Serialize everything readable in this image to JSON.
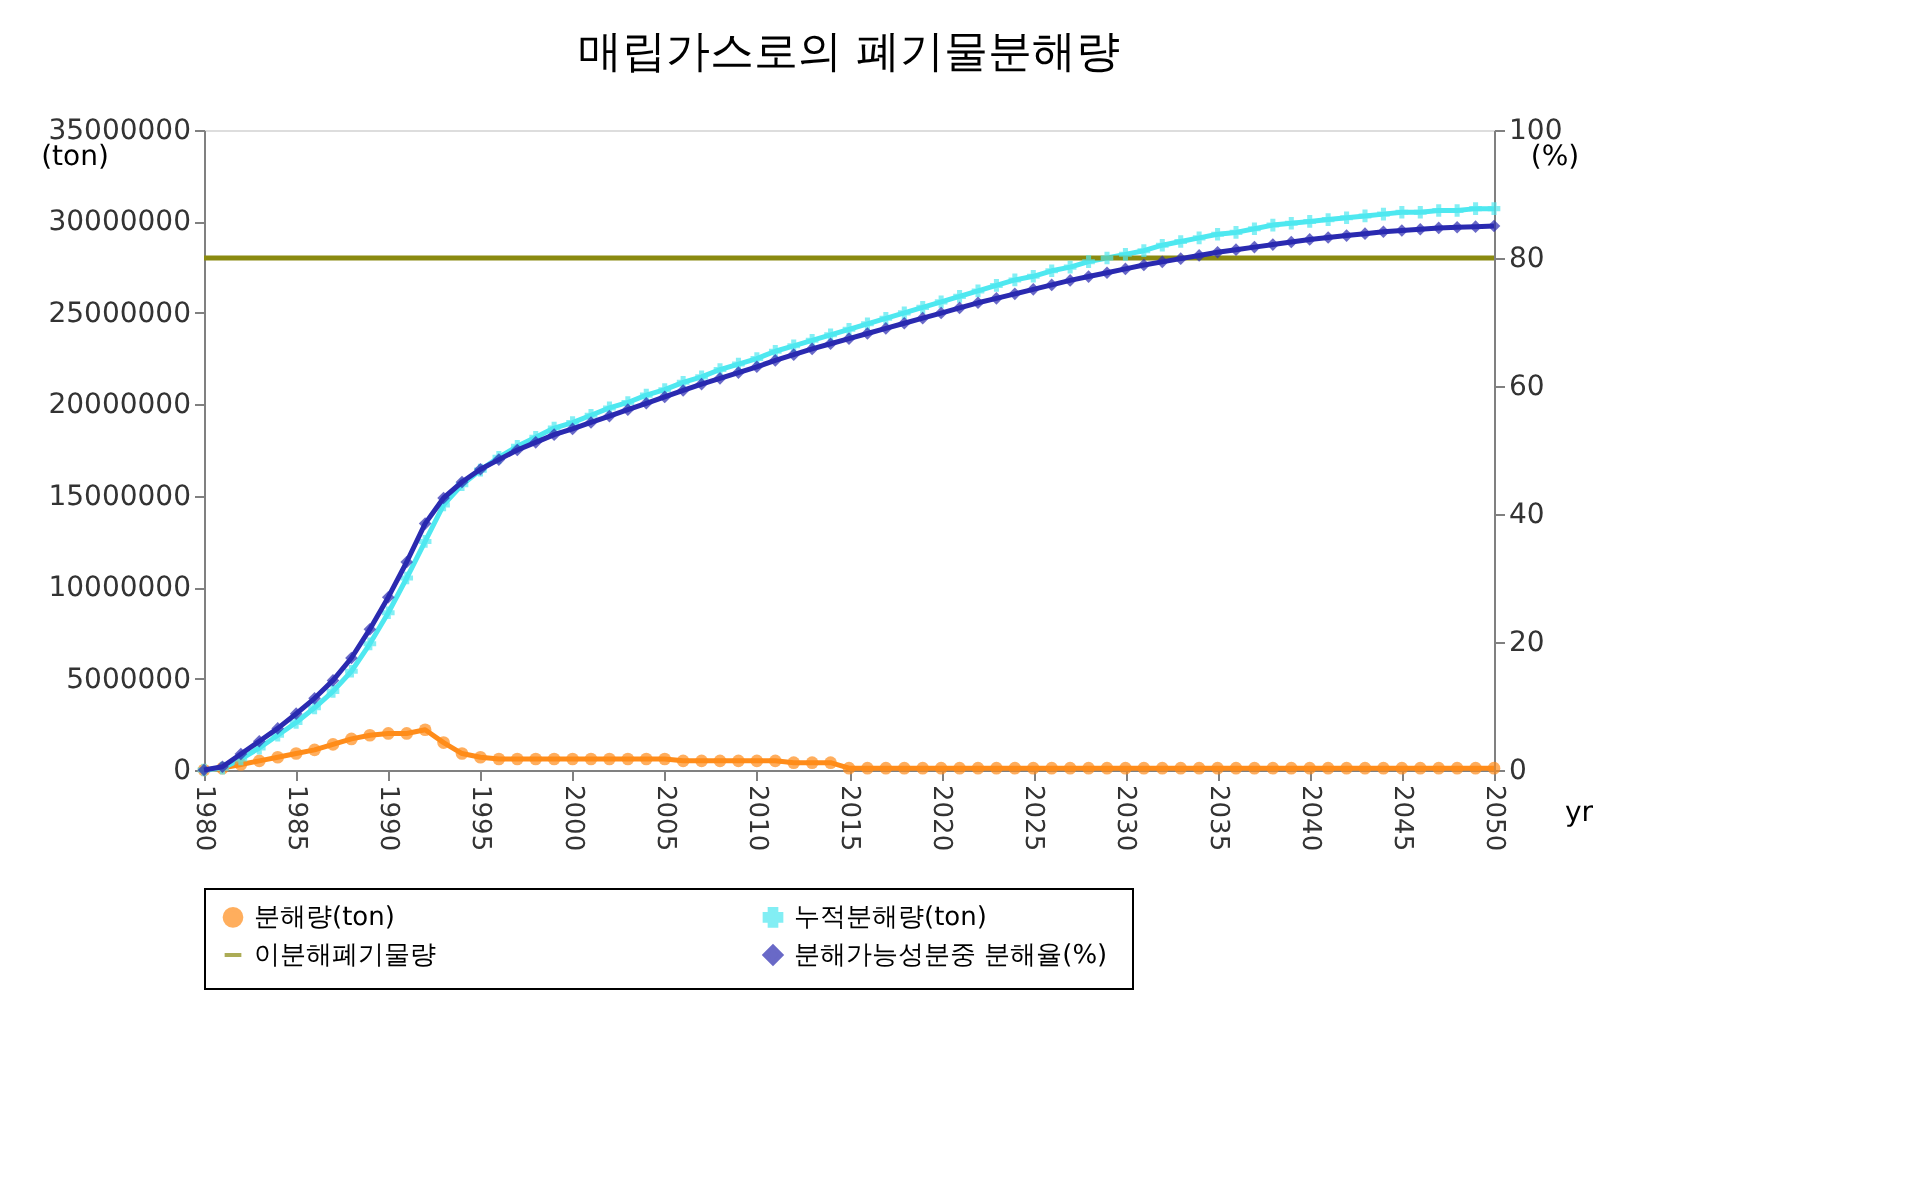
{
  "chart_data": {
    "type": "line",
    "title": "매립가스로의 폐기물분해량",
    "xlabel": "yr",
    "ylabel": "(ton)",
    "y2label": "(%)",
    "x": [
      1980,
      1981,
      1982,
      1983,
      1984,
      1985,
      1986,
      1987,
      1988,
      1989,
      1990,
      1991,
      1992,
      1993,
      1994,
      1995,
      1996,
      1997,
      1998,
      1999,
      2000,
      2001,
      2002,
      2003,
      2004,
      2005,
      2006,
      2007,
      2008,
      2009,
      2010,
      2011,
      2012,
      2013,
      2014,
      2015,
      2016,
      2017,
      2018,
      2019,
      2020,
      2021,
      2022,
      2023,
      2024,
      2025,
      2026,
      2027,
      2028,
      2029,
      2030,
      2031,
      2032,
      2033,
      2034,
      2035,
      2036,
      2037,
      2038,
      2039,
      2040,
      2041,
      2042,
      2043,
      2044,
      2045,
      2046,
      2047,
      2048,
      2049,
      2050
    ],
    "series": [
      {
        "name": "분해량(ton)",
        "color": "#ff8c1a",
        "marker": "circle",
        "values": [
          0,
          100000,
          300000,
          500000,
          700000,
          900000,
          1100000,
          1400000,
          1700000,
          1900000,
          2000000,
          2000000,
          2200000,
          1500000,
          900000,
          700000,
          600000,
          600000,
          600000,
          600000,
          600000,
          600000,
          600000,
          600000,
          600000,
          600000,
          500000,
          500000,
          500000,
          500000,
          500000,
          500000,
          400000,
          400000,
          400000,
          100000,
          100000,
          100000,
          100000,
          100000,
          100000,
          100000,
          100000,
          100000,
          100000,
          100000,
          100000,
          100000,
          100000,
          100000,
          100000,
          100000,
          100000,
          100000,
          100000,
          100000,
          100000,
          100000,
          100000,
          100000,
          100000,
          100000,
          100000,
          100000,
          100000,
          100000,
          100000,
          100000,
          100000,
          100000,
          100000
        ]
      },
      {
        "name": "누적분해량(ton)",
        "color": "#4ee8f0",
        "marker": "cross",
        "values": [
          0,
          100000,
          600000,
          1200000,
          1900000,
          2600000,
          3400000,
          4300000,
          5400000,
          6900000,
          8600000,
          10500000,
          12500000,
          14500000,
          15600000,
          16400000,
          17100000,
          17700000,
          18200000,
          18700000,
          19000000,
          19400000,
          19800000,
          20100000,
          20500000,
          20800000,
          21200000,
          21500000,
          21900000,
          22200000,
          22500000,
          22900000,
          23200000,
          23500000,
          23800000,
          24100000,
          24400000,
          24700000,
          25000000,
          25300000,
          25600000,
          25900000,
          26200000,
          26500000,
          26800000,
          27000000,
          27300000,
          27500000,
          27800000,
          28000000,
          28200000,
          28400000,
          28700000,
          28900000,
          29100000,
          29300000,
          29400000,
          29600000,
          29800000,
          29900000,
          30000000,
          30100000,
          30200000,
          30300000,
          30400000,
          30500000,
          30500000,
          30600000,
          30600000,
          30700000,
          30700000
        ]
      },
      {
        "name": "이분해폐기물량",
        "color": "#8a8a10",
        "marker": "none",
        "values": [
          28000000,
          28000000,
          28000000,
          28000000,
          28000000,
          28000000,
          28000000,
          28000000,
          28000000,
          28000000,
          28000000,
          28000000,
          28000000,
          28000000,
          28000000,
          28000000,
          28000000,
          28000000,
          28000000,
          28000000,
          28000000,
          28000000,
          28000000,
          28000000,
          28000000,
          28000000,
          28000000,
          28000000,
          28000000,
          28000000,
          28000000,
          28000000,
          28000000,
          28000000,
          28000000,
          28000000,
          28000000,
          28000000,
          28000000,
          28000000,
          28000000,
          28000000,
          28000000,
          28000000,
          28000000,
          28000000,
          28000000,
          28000000,
          28000000,
          28000000,
          28000000,
          28000000,
          28000000,
          28000000,
          28000000,
          28000000,
          28000000,
          28000000,
          28000000,
          28000000,
          28000000,
          28000000,
          28000000,
          28000000,
          28000000,
          28000000,
          28000000,
          28000000,
          28000000,
          28000000,
          28000000
        ]
      },
      {
        "name": "분해가능성분중  분해율(%)",
        "color": "#2a2ab0",
        "marker": "diamond",
        "axis": "y2",
        "values": [
          0,
          0.5,
          2.5,
          4.5,
          6.5,
          8.8,
          11.2,
          14,
          17.5,
          22,
          27,
          32.5,
          38.5,
          42.5,
          45,
          47,
          48.5,
          50,
          51.2,
          52.4,
          53.3,
          54.3,
          55.3,
          56.3,
          57.3,
          58.3,
          59.3,
          60.3,
          61.2,
          62.1,
          63,
          64,
          64.9,
          65.8,
          66.6,
          67.4,
          68.2,
          69,
          69.8,
          70.6,
          71.4,
          72.2,
          73,
          73.7,
          74.4,
          75.1,
          75.8,
          76.5,
          77.1,
          77.7,
          78.3,
          78.9,
          79.4,
          79.9,
          80.4,
          80.9,
          81.3,
          81.7,
          82.1,
          82.5,
          82.9,
          83.2,
          83.5,
          83.8,
          84.1,
          84.3,
          84.5,
          84.7,
          84.8,
          84.9,
          85
        ]
      }
    ],
    "xlim": [
      1980,
      2050
    ],
    "xticks": [
      1980,
      1985,
      1990,
      1995,
      2000,
      2005,
      2010,
      2015,
      2020,
      2025,
      2030,
      2035,
      2040,
      2045,
      2050
    ],
    "ylim": [
      0,
      35000000
    ],
    "yticks": [
      0,
      5000000,
      10000000,
      15000000,
      20000000,
      25000000,
      30000000,
      35000000
    ],
    "y2lim": [
      0,
      100
    ],
    "y2ticks": [
      0,
      20,
      40,
      60,
      80,
      100
    ],
    "grid": false,
    "legend": "bottom"
  }
}
